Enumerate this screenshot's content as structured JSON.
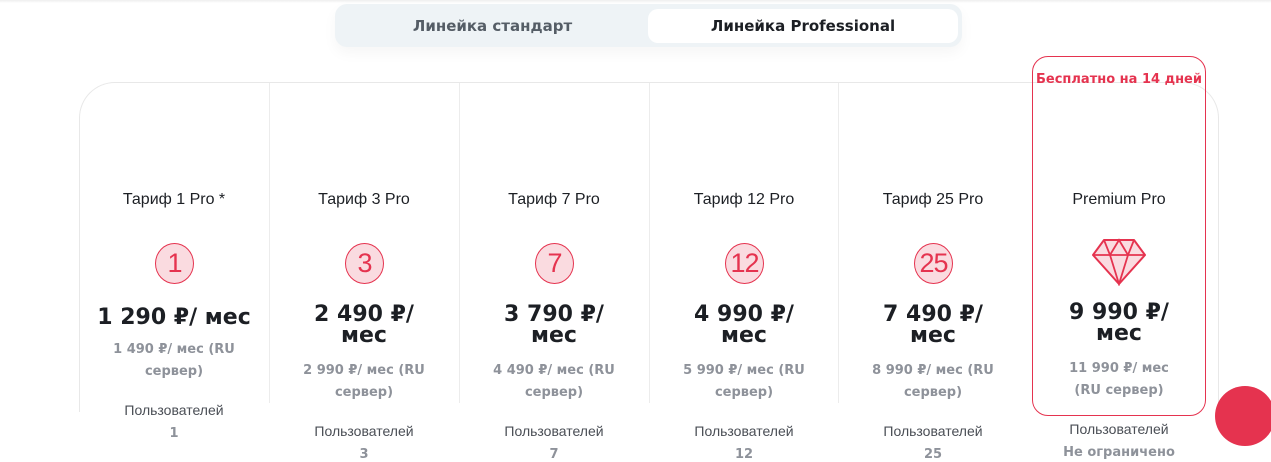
{
  "tabs": [
    {
      "label": "Линейка стандарт",
      "active": false
    },
    {
      "label": "Линейка Professional",
      "active": true
    }
  ],
  "accent_color": "#e5334f",
  "premium_badge": "Бесплатно на 14 дней",
  "users_label": "Пользователей",
  "plans": [
    {
      "title": "Тариф 1 Pro *",
      "icon": "1",
      "price": "1 290 ₽/ мес",
      "ru_price": "1 490 ₽/ мес (RU сервер)",
      "users": "1"
    },
    {
      "title": "Тариф 3 Pro",
      "icon": "3",
      "price": "2 490 ₽/ мес",
      "ru_price": "2 990 ₽/ мес (RU сервер)",
      "users": "3"
    },
    {
      "title": "Тариф 7 Pro",
      "icon": "7",
      "price": "3 790 ₽/ мес",
      "ru_price": "4 490 ₽/ мес (RU сервер)",
      "users": "7"
    },
    {
      "title": "Тариф 12 Pro",
      "icon": "12",
      "price": "4 990 ₽/ мес",
      "ru_price": "5 990 ₽/ мес (RU сервер)",
      "users": "12"
    },
    {
      "title": "Тариф 25 Pro",
      "icon": "25",
      "price": "7 490 ₽/ мес",
      "ru_price": "8 990 ₽/ мес (RU сервер)",
      "users": "25"
    },
    {
      "title": "Premium Pro",
      "icon": "diamond-icon",
      "price": "9 990 ₽/ мес",
      "ru_price": "11 990 ₽/ мес (RU сервер)",
      "users": "Не ограничено"
    }
  ]
}
